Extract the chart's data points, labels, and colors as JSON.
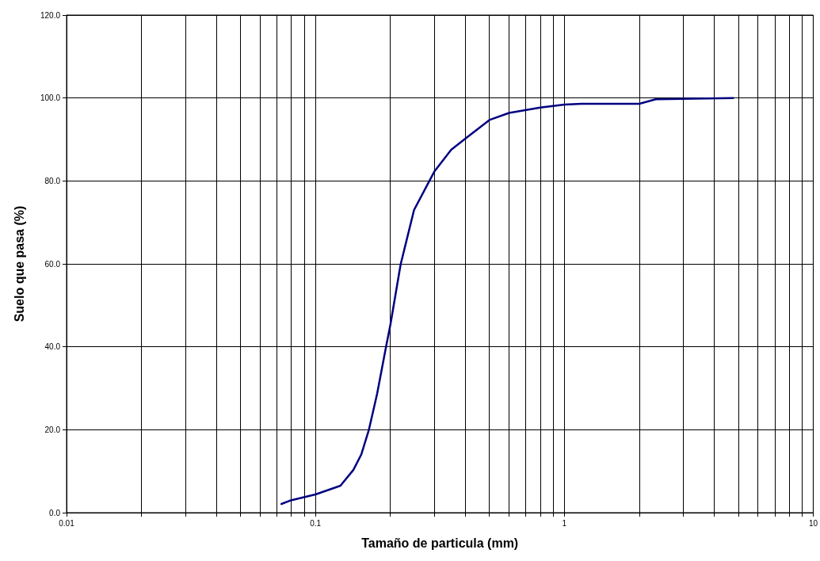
{
  "chart_data": {
    "type": "line",
    "xlabel": "Tamaño de particula (mm)",
    "ylabel": "Suelo que pasa (%)",
    "log": "x",
    "grid": true,
    "marker": "none",
    "line_style": "solid",
    "xlim": [
      0.01,
      10
    ],
    "ylim": [
      0,
      120
    ],
    "xticks": [
      0.01,
      {
        "value": 0.02,
        "label": null
      },
      {
        "value": 0.03,
        "label": null
      },
      {
        "value": 0.04,
        "label": null
      },
      {
        "value": 0.05,
        "label": null
      },
      {
        "value": 0.06,
        "label": null
      },
      {
        "value": 0.07,
        "label": null
      },
      {
        "value": 0.08,
        "label": null
      },
      {
        "value": 0.09,
        "label": null
      },
      0.1,
      {
        "value": 0.2,
        "label": null
      },
      {
        "value": 0.3,
        "label": null
      },
      {
        "value": 0.4,
        "label": null
      },
      {
        "value": 0.5,
        "label": null
      },
      {
        "value": 0.6,
        "label": null
      },
      {
        "value": 0.7,
        "label": null
      },
      {
        "value": 0.8,
        "label": null
      },
      {
        "value": 0.9,
        "label": null
      },
      1,
      {
        "value": 2,
        "label": null
      },
      {
        "value": 3,
        "label": null
      },
      {
        "value": 4,
        "label": null
      },
      {
        "value": 5,
        "label": null
      },
      {
        "value": 6,
        "label": null
      },
      {
        "value": 7,
        "label": null
      },
      {
        "value": 8,
        "label": null
      },
      {
        "value": 9,
        "label": null
      },
      10
    ],
    "yticks": [
      {
        "value": 0,
        "label": "0.0"
      },
      {
        "value": 20,
        "label": "20.0"
      },
      {
        "value": 40,
        "label": "40.0"
      },
      {
        "value": 60,
        "label": "60.0"
      },
      {
        "value": 80,
        "label": "80.0"
      },
      {
        "value": 100,
        "label": "100.0"
      },
      {
        "value": 120,
        "label": "120.0"
      }
    ],
    "series": [
      {
        "color": "#000080",
        "x": [
          0.073,
          0.079,
          0.1,
          0.126,
          0.142,
          0.153,
          0.164,
          0.177,
          0.192,
          0.2,
          0.22,
          0.249,
          0.3,
          0.351,
          0.4,
          0.5,
          0.6,
          0.8,
          1.0,
          1.17,
          2.0,
          2.33,
          4.77
        ],
        "values": [
          2.1,
          2.9,
          4.4,
          6.5,
          10.3,
          14.1,
          20.0,
          28.7,
          39.9,
          45.3,
          59.9,
          73.0,
          82.2,
          87.5,
          90.2,
          94.7,
          96.4,
          97.7,
          98.4,
          98.6,
          98.6,
          99.7,
          100.0
        ]
      }
    ]
  }
}
